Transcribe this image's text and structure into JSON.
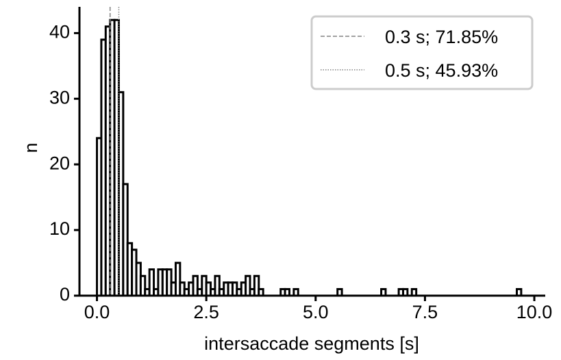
{
  "chart_data": {
    "type": "bar",
    "subtype": "histogram",
    "xlabel": "intersaccade segments [s]",
    "ylabel": "n",
    "xlim": [
      -0.4,
      10.25
    ],
    "ylim": [
      0,
      44
    ],
    "xticks": [
      "0.0",
      "2.5",
      "5.0",
      "7.5",
      "10.0"
    ],
    "yticks": [
      "0",
      "10",
      "20",
      "30",
      "40"
    ],
    "bin_width": 0.1,
    "bins": [
      {
        "x": 0.0,
        "n": 24
      },
      {
        "x": 0.1,
        "n": 39
      },
      {
        "x": 0.2,
        "n": 41
      },
      {
        "x": 0.3,
        "n": 42
      },
      {
        "x": 0.4,
        "n": 42
      },
      {
        "x": 0.5,
        "n": 31
      },
      {
        "x": 0.6,
        "n": 17
      },
      {
        "x": 0.7,
        "n": 8
      },
      {
        "x": 0.8,
        "n": 7
      },
      {
        "x": 0.9,
        "n": 5
      },
      {
        "x": 1.0,
        "n": 3
      },
      {
        "x": 1.1,
        "n": 1
      },
      {
        "x": 1.2,
        "n": 4
      },
      {
        "x": 1.3,
        "n": 1
      },
      {
        "x": 1.4,
        "n": 4
      },
      {
        "x": 1.5,
        "n": 4
      },
      {
        "x": 1.6,
        "n": 4
      },
      {
        "x": 1.7,
        "n": 2
      },
      {
        "x": 1.8,
        "n": 5
      },
      {
        "x": 1.9,
        "n": 2
      },
      {
        "x": 2.0,
        "n": 1
      },
      {
        "x": 2.1,
        "n": 2
      },
      {
        "x": 2.2,
        "n": 3
      },
      {
        "x": 2.3,
        "n": 1
      },
      {
        "x": 2.4,
        "n": 3
      },
      {
        "x": 2.5,
        "n": 2
      },
      {
        "x": 2.6,
        "n": 1
      },
      {
        "x": 2.7,
        "n": 3
      },
      {
        "x": 2.8,
        "n": 1
      },
      {
        "x": 2.9,
        "n": 2
      },
      {
        "x": 3.0,
        "n": 2
      },
      {
        "x": 3.1,
        "n": 2
      },
      {
        "x": 3.2,
        "n": 1
      },
      {
        "x": 3.3,
        "n": 2
      },
      {
        "x": 3.4,
        "n": 3
      },
      {
        "x": 3.5,
        "n": 1
      },
      {
        "x": 3.6,
        "n": 3
      },
      {
        "x": 3.7,
        "n": 1
      },
      {
        "x": 4.2,
        "n": 1
      },
      {
        "x": 4.3,
        "n": 1
      },
      {
        "x": 4.5,
        "n": 1
      },
      {
        "x": 5.5,
        "n": 1
      },
      {
        "x": 6.5,
        "n": 1
      },
      {
        "x": 6.9,
        "n": 1
      },
      {
        "x": 7.0,
        "n": 1
      },
      {
        "x": 7.2,
        "n": 1
      },
      {
        "x": 9.6,
        "n": 1
      }
    ],
    "reference_lines": [
      {
        "x": 0.3,
        "style": "dashed",
        "label": "0.3 s; 71.85%"
      },
      {
        "x": 0.5,
        "style": "dotted",
        "label": "0.5 s; 45.93%"
      }
    ],
    "legend_position": "top-right",
    "grid": false,
    "colors": {
      "bars": "#000000",
      "dashed_line": "#808080",
      "dotted_line": "#808080",
      "legend_border": "#cccccc"
    }
  }
}
